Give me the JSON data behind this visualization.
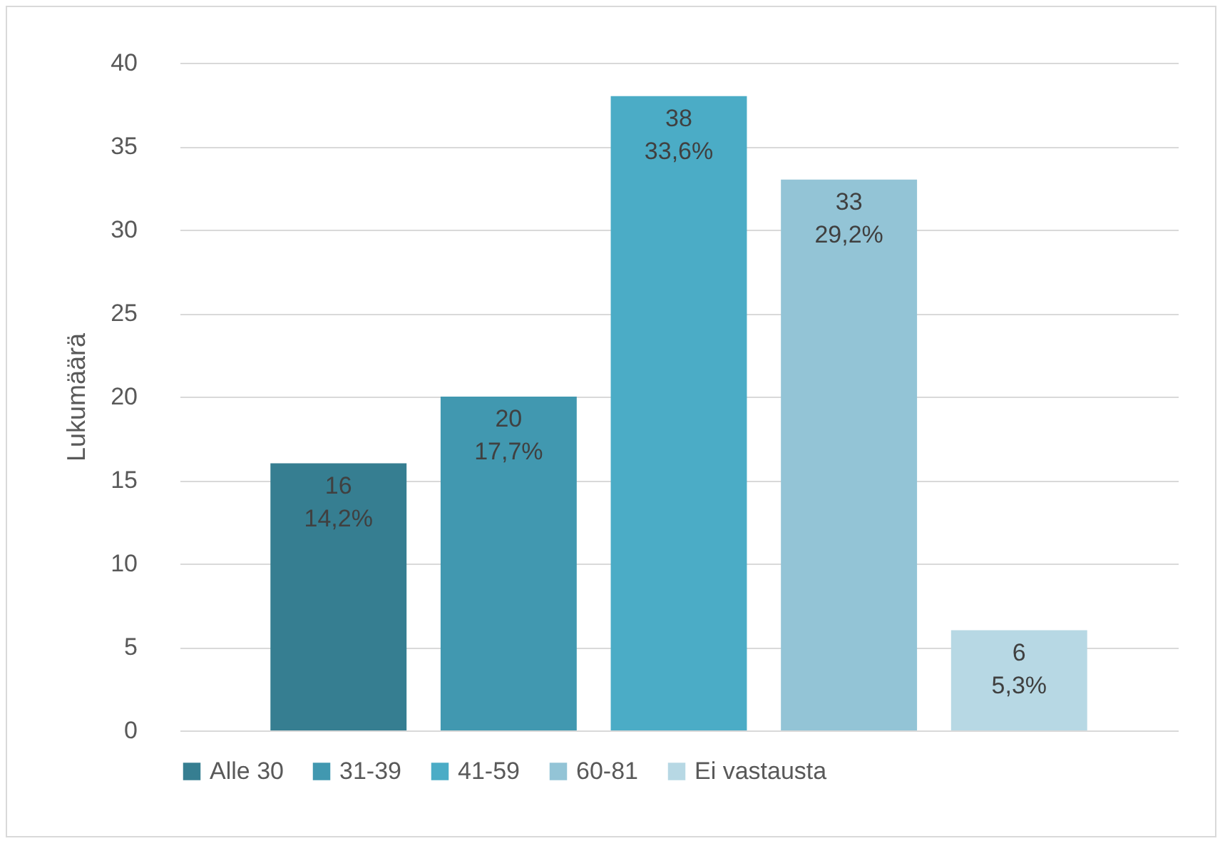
{
  "chart_data": {
    "type": "bar",
    "ylabel": "Lukumäärä",
    "categories": [
      null
    ],
    "series": [
      {
        "name": "Alle 30",
        "color": "#367e91",
        "values": [
          16
        ],
        "value_labels": [
          "16\n14,2%"
        ]
      },
      {
        "name": "31-39",
        "color": "#4198b0",
        "values": [
          20
        ],
        "value_labels": [
          "20\n17,7%"
        ]
      },
      {
        "name": "41-59",
        "color": "#4bacc6",
        "values": [
          38
        ],
        "value_labels": [
          "38\n33,6%"
        ]
      },
      {
        "name": "60-81",
        "color": "#93c4d6",
        "values": [
          33
        ],
        "value_labels": [
          "33\n29,2%"
        ]
      },
      {
        "name": "Ei vastausta",
        "color": "#b7d8e4",
        "values": [
          6
        ],
        "value_labels": [
          "6\n5,3%"
        ]
      }
    ],
    "ylim": [
      0,
      40
    ],
    "yticks": [
      0,
      5,
      10,
      15,
      20,
      25,
      30,
      35,
      40
    ],
    "grid": "y",
    "legend": "bottom"
  }
}
